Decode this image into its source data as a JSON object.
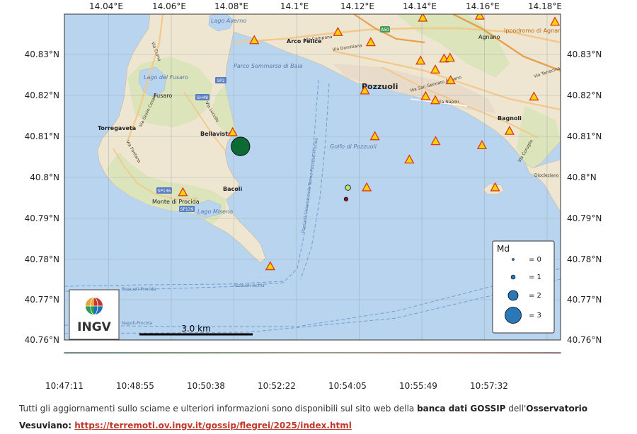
{
  "map": {
    "top_ticks": [
      "14.04°E",
      "14.06°E",
      "14.08°E",
      "14.1°E",
      "14.12°E",
      "14.14°E",
      "14.16°E",
      "14.18°E"
    ],
    "lat_ticks": [
      "40.83°N",
      "40.82°N",
      "40.81°N",
      "40.8°N",
      "40.79°N",
      "40.78°N",
      "40.77°N",
      "40.76°N"
    ],
    "places": {
      "pozzuoli": "Pozzuoli",
      "bagnoli": "Bagnoli",
      "bacoli": "Bacoli",
      "bellavista": "Bellavista",
      "torregaveta": "Torregaveta",
      "fusaro": "Fusaro",
      "lago_fusaro": "Lago del Fusaro",
      "monte_procida": "Monte di Procida",
      "arco_felice": "Arco Felice",
      "agnano": "Agnano",
      "lago_averno": "Lago Averno",
      "lago_miseno": "Lago Miseno",
      "golfo": "Golfo di Pozzuoli",
      "porto_baia": "Parco Sommerso di Baia",
      "ippodromo": "Ippodromo di Agnano",
      "a50": "A50"
    },
    "roads": {
      "campana": "Via Campana",
      "domitiana": "Via Domitiana",
      "san_gennaro": "Via San Gennaro Agnano",
      "napoli": "Via Napoli",
      "terracina": "Via Terracina",
      "cuma": "Via Cuma",
      "giulio_cesare": "Via Giulio Cesare",
      "fontana": "Via Fontana",
      "lucullo": "Via Lucullo",
      "coroglio": "Via Coroglio",
      "diocleziano": "Diocleziano",
      "sp2": "SP2",
      "sp48": "SH48",
      "sp136": "SP136",
      "sp139": "SP139",
      "ferry1": "Pozzuoli-Casamicciola-Terme-Pozzuoli-Procida",
      "ferry2": "Pozzuoli-Ischia",
      "ferry3": "Pozzuoli-Procida",
      "ferry4": "Napoli-Procida"
    },
    "scale_label": "3.0 km",
    "logo_text": "INGV",
    "legend": {
      "title": "Md",
      "entries": [
        "= 0",
        "= 1",
        "= 2",
        "= 3"
      ]
    },
    "colorbar_ticks": [
      "10:47:11",
      "10:48:55",
      "10:50:38",
      "10:52:22",
      "10:54:05",
      "10:55:49",
      "10:57:32"
    ],
    "colors": {
      "sea": "#b9d4ee",
      "land": "#efe6d2",
      "green_area": "#d7e3b6",
      "stations": "#f6d200",
      "station_edge": "#d93a1f",
      "legend_dot": "#2a78b8"
    },
    "events": [
      {
        "lon": 14.0821,
        "lat": 40.8075,
        "md": 3.0,
        "time": "10:47:11",
        "color": "#0c6b35"
      },
      {
        "lon": 14.1164,
        "lat": 40.7974,
        "md": 1.2,
        "time": "10:52:40",
        "color": "#bfe077"
      },
      {
        "lon": 14.1158,
        "lat": 40.7946,
        "md": 0.8,
        "time": "10:59:10",
        "color": "#a01129"
      }
    ],
    "stations": [
      [
        14.0865,
        40.8335
      ],
      [
        14.1132,
        40.8355
      ],
      [
        14.1237,
        40.833
      ],
      [
        14.1403,
        40.839
      ],
      [
        14.1585,
        40.8395
      ],
      [
        14.1825,
        40.838
      ],
      [
        14.1396,
        40.8285
      ],
      [
        14.1471,
        40.829
      ],
      [
        14.149,
        40.8292
      ],
      [
        14.1443,
        40.8263
      ],
      [
        14.1492,
        40.8237
      ],
      [
        14.1412,
        40.8198
      ],
      [
        14.1443,
        40.8188
      ],
      [
        14.1758,
        40.8197
      ],
      [
        14.168,
        40.8113
      ],
      [
        14.1218,
        40.8212
      ],
      [
        14.125,
        40.81
      ],
      [
        14.1444,
        40.8088
      ],
      [
        14.1592,
        40.8078
      ],
      [
        14.136,
        40.8043
      ],
      [
        14.1224,
        40.7975
      ],
      [
        14.1634,
        40.7975
      ],
      [
        14.0796,
        40.811
      ],
      [
        14.0637,
        40.7963
      ],
      [
        14.0916,
        40.7782
      ]
    ]
  },
  "footer": {
    "line1_pre": "Tutti gli aggiornamenti sullo sciame e ulteriori informazioni sono disponibili sul sito web della ",
    "line1_bold": "banca dati GOSSIP",
    "line1_mid": " dell'",
    "line1_bold2": "Osservatorio",
    "line2_bold": "Vesuviano: ",
    "link": "https://terremoti.ov.ingv.it/gossip/flegrei/2025/index.html"
  }
}
